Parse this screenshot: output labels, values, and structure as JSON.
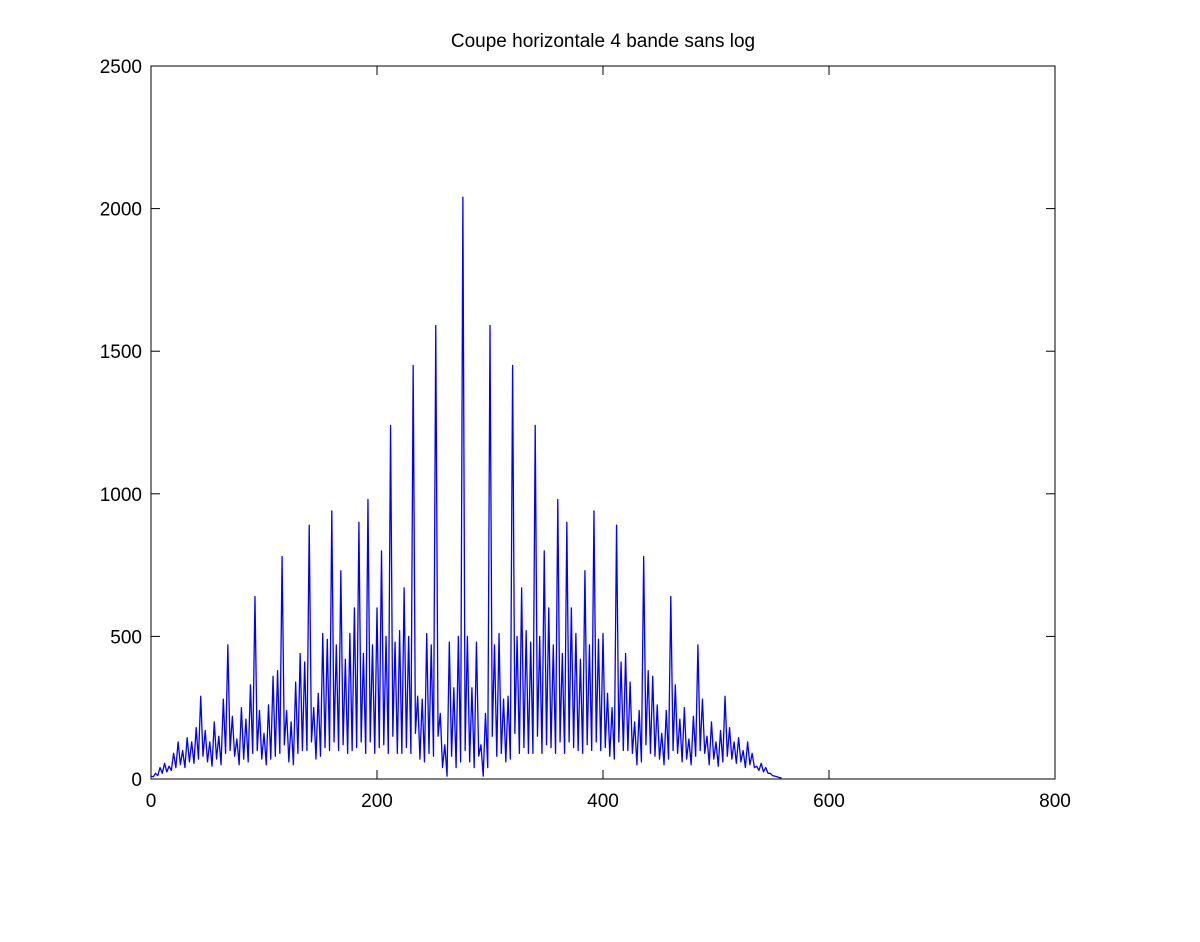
{
  "chart_data": {
    "type": "line",
    "title": "Coupe horizontale 4 bande sans log",
    "xlabel": "",
    "ylabel": "",
    "xlim": [
      0,
      800
    ],
    "ylim": [
      0,
      2500
    ],
    "xticks": [
      0,
      200,
      400,
      600,
      800
    ],
    "yticks": [
      0,
      500,
      1000,
      1500,
      2000,
      2500
    ],
    "x_tick_labels": [
      "0",
      "200",
      "400",
      "600",
      "800"
    ],
    "y_tick_labels": [
      "0",
      "500",
      "1000",
      "1500",
      "2000",
      "2500"
    ],
    "grid": false,
    "legend": "none",
    "line_color": "#0000ff",
    "series": [
      {
        "x_start": 0,
        "x_step": 4,
        "values": [
          10,
          20,
          40,
          55,
          45,
          90,
          130,
          100,
          145,
          130,
          180,
          290,
          170,
          130,
          200,
          150,
          280,
          470,
          220,
          140,
          250,
          210,
          330,
          640,
          240,
          160,
          260,
          360,
          380,
          780,
          240,
          200,
          340,
          440,
          410,
          890,
          250,
          300,
          510,
          490,
          940,
          470,
          730,
          420,
          510,
          600,
          900,
          440,
          980,
          470,
          600,
          800,
          500,
          1240,
          480,
          520,
          670,
          500,
          1450,
          290,
          280,
          510,
          470,
          1590,
          230,
          120,
          480,
          320,
          500,
          2040,
          500,
          320,
          480,
          120,
          230,
          1590,
          470,
          510,
          280,
          290,
          1450,
          500,
          670,
          520,
          480,
          1240,
          500,
          800,
          600,
          470,
          980,
          440,
          900,
          600,
          510,
          420,
          730,
          470,
          940,
          490,
          510,
          300,
          250,
          890,
          410,
          440,
          340,
          200,
          240,
          780,
          380,
          360,
          260,
          160,
          240,
          640,
          330,
          210,
          250,
          140,
          220,
          470,
          280,
          150,
          200,
          130,
          170,
          290,
          180,
          130,
          145,
          100,
          130,
          90,
          45,
          55,
          40,
          20,
          10,
          5
        ]
      },
      {
        "x_start": 2,
        "x_step": 4,
        "values": [
          8,
          12,
          20,
          25,
          30,
          40,
          50,
          40,
          60,
          55,
          70,
          80,
          60,
          45,
          70,
          50,
          90,
          100,
          80,
          50,
          70,
          60,
          90,
          100,
          70,
          50,
          70,
          80,
          90,
          120,
          60,
          50,
          90,
          100,
          100,
          130,
          70,
          80,
          110,
          100,
          130,
          100,
          120,
          90,
          100,
          110,
          130,
          90,
          130,
          90,
          110,
          120,
          90,
          150,
          90,
          90,
          110,
          90,
          160,
          70,
          60,
          90,
          80,
          150,
          40,
          10,
          80,
          40,
          60,
          100,
          60,
          40,
          80,
          10,
          40,
          150,
          80,
          90,
          60,
          70,
          160,
          90,
          110,
          90,
          90,
          150,
          90,
          120,
          110,
          90,
          130,
          90,
          130,
          110,
          100,
          90,
          120,
          100,
          130,
          100,
          110,
          80,
          70,
          130,
          100,
          100,
          90,
          50,
          60,
          120,
          90,
          80,
          70,
          50,
          70,
          100,
          90,
          60,
          70,
          50,
          80,
          100,
          90,
          50,
          70,
          45,
          60,
          80,
          70,
          55,
          60,
          40,
          50,
          40,
          30,
          25,
          20,
          12,
          8,
          4
        ]
      }
    ]
  }
}
